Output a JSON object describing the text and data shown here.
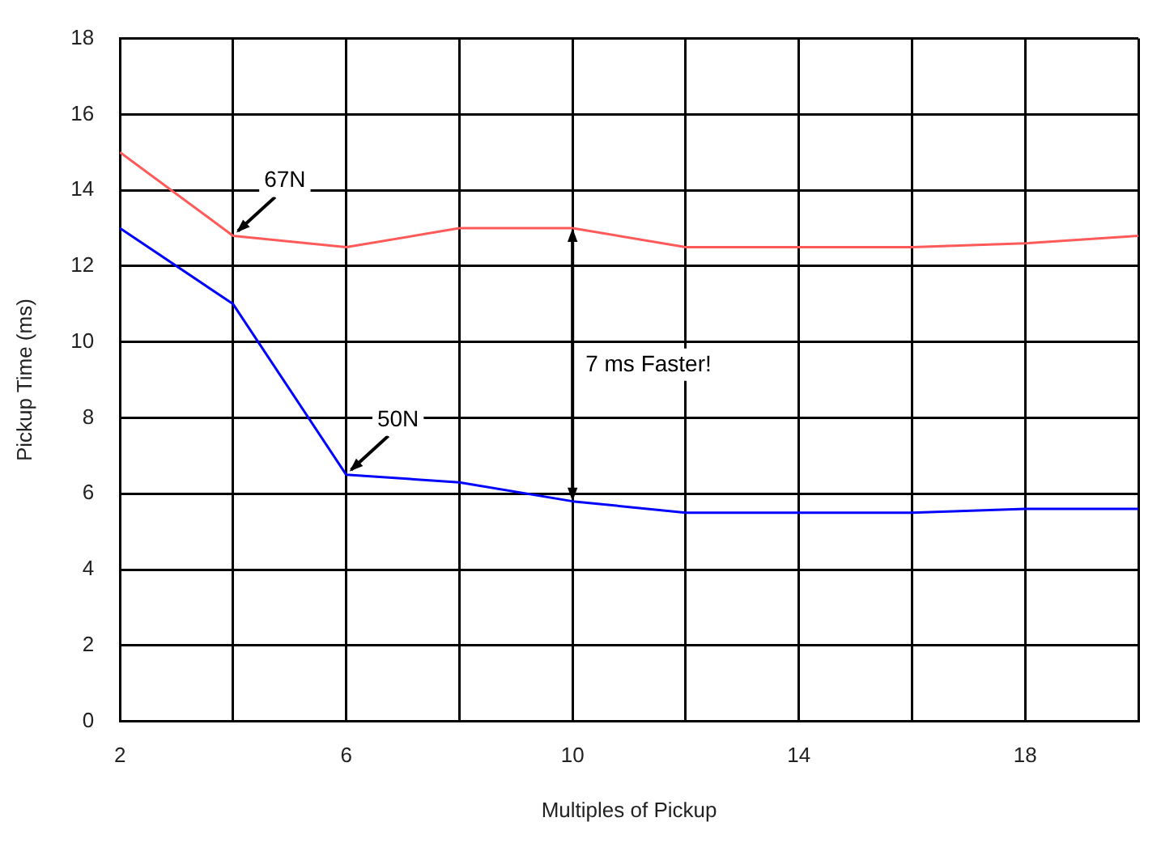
{
  "chart_data": {
    "type": "line",
    "xlabel": "Multiples of Pickup",
    "ylabel": "Pickup Time (ms)",
    "x": [
      2,
      4,
      6,
      8,
      10,
      12,
      14,
      16,
      18,
      20
    ],
    "series": [
      {
        "name": "67N",
        "color": "#ff5a5a",
        "values": [
          15,
          12.8,
          12.5,
          13,
          13,
          12.5,
          12.5,
          12.5,
          12.6,
          12.8
        ]
      },
      {
        "name": "50N",
        "color": "#0000ff",
        "values": [
          13,
          11,
          6.5,
          6.3,
          5.8,
          5.5,
          5.5,
          5.5,
          5.6,
          5.6
        ]
      }
    ],
    "xlim": [
      2,
      20
    ],
    "xticks": [
      2,
      {
        "value": 4,
        "label": null
      },
      6,
      {
        "value": 8,
        "label": null
      },
      10,
      {
        "value": 12,
        "label": null
      },
      14,
      {
        "value": 16,
        "label": null
      },
      18,
      {
        "value": 20,
        "label": null
      }
    ],
    "ylim": [
      0,
      18
    ],
    "yticks": [
      0,
      2,
      4,
      6,
      8,
      10,
      12,
      14,
      16,
      18
    ],
    "grid": true,
    "legend": false,
    "marker": "none",
    "line_style": "solid",
    "annotations": [
      "7 ms Faster!"
    ]
  }
}
